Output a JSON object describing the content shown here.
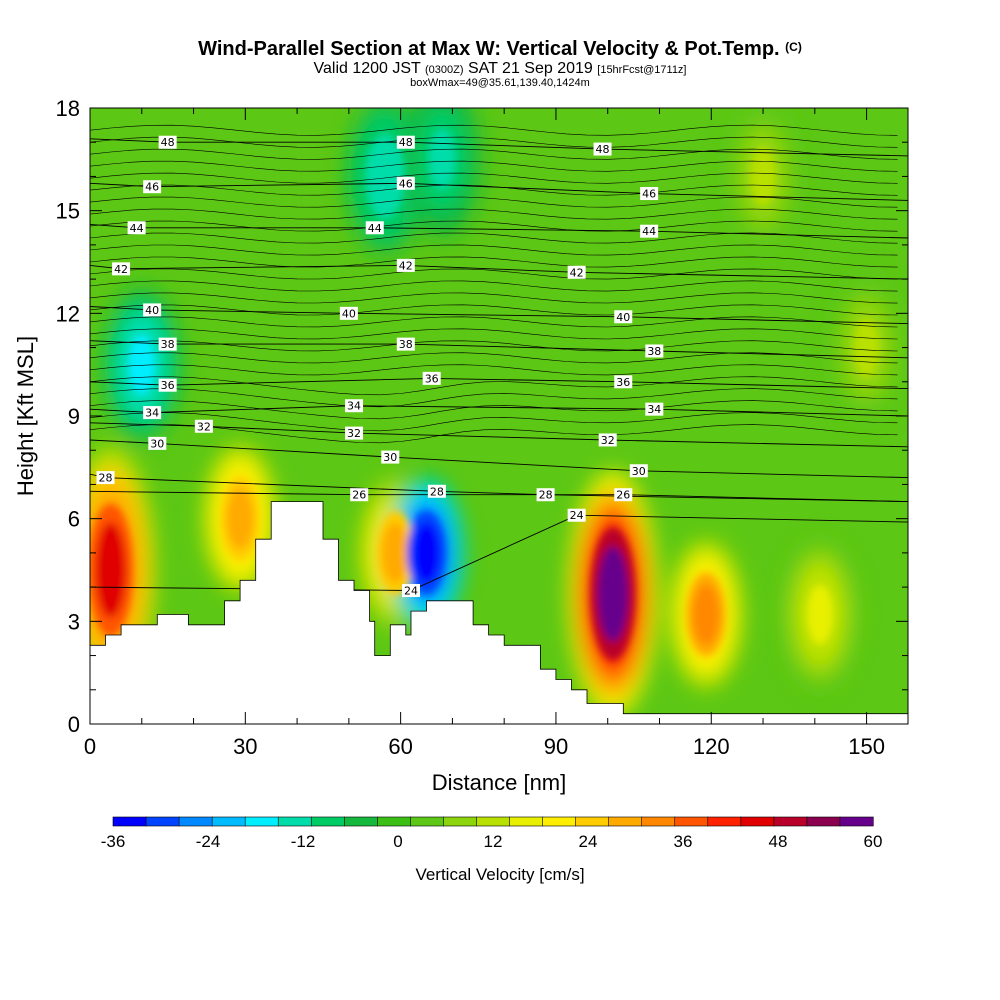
{
  "title": {
    "main": "Wind-Parallel Section at Max W: Vertical Velocity & Pot.Temp.",
    "copyright": "(C)",
    "valid_prefix": "Valid 1200 JST",
    "valid_utc": "(0300Z)",
    "valid_date": "SAT 21 Sep 2019",
    "forecast": "[15hrFcst@1711z]",
    "box_info": "boxWmax=49@35.61,139.40,1424m"
  },
  "colors": {
    "terrain": "#ffffff",
    "background_green": "#5cc714",
    "colorbar": [
      "#0000ff",
      "#0044ff",
      "#0088ff",
      "#00bbff",
      "#00eeff",
      "#00ddaa",
      "#00cc66",
      "#14b83c",
      "#3cbf14",
      "#5cc714",
      "#8cd40c",
      "#b8e000",
      "#e8f000",
      "#ffee00",
      "#ffcc00",
      "#ffaa00",
      "#ff8800",
      "#ff5500",
      "#ff2200",
      "#e00000",
      "#b8002a",
      "#8c0050",
      "#66008c"
    ]
  },
  "chart_data": {
    "type": "heatmap",
    "xlabel": "Distance [nm]",
    "ylabel": "Height [Kft MSL]",
    "xlim": [
      0,
      158
    ],
    "ylim": [
      0,
      18
    ],
    "x_ticks": [
      0,
      30,
      60,
      90,
      120,
      150
    ],
    "y_ticks": [
      0,
      3,
      6,
      9,
      12,
      15,
      18
    ],
    "colorbar": {
      "label": "Vertical Velocity [cm/s]",
      "min": -36,
      "max": 60,
      "tick_values": [
        -36,
        -24,
        -12,
        0,
        12,
        24,
        36,
        48,
        60
      ]
    },
    "terrain": [
      [
        0,
        2.3
      ],
      [
        3,
        2.3
      ],
      [
        3,
        2.6
      ],
      [
        6,
        2.6
      ],
      [
        6,
        2.9
      ],
      [
        13,
        2.9
      ],
      [
        13,
        3.2
      ],
      [
        19,
        3.2
      ],
      [
        19,
        2.9
      ],
      [
        26,
        2.9
      ],
      [
        26,
        3.6
      ],
      [
        29,
        3.6
      ],
      [
        29,
        4.2
      ],
      [
        32,
        4.2
      ],
      [
        32,
        5.4
      ],
      [
        35,
        5.4
      ],
      [
        35,
        6.5
      ],
      [
        45,
        6.5
      ],
      [
        45,
        5.4
      ],
      [
        48,
        5.4
      ],
      [
        48,
        4.2
      ],
      [
        51,
        4.2
      ],
      [
        51,
        3.9
      ],
      [
        54,
        3.9
      ],
      [
        54,
        3.0
      ],
      [
        55,
        3.0
      ],
      [
        55,
        2.0
      ],
      [
        58,
        2.0
      ],
      [
        58,
        2.9
      ],
      [
        61,
        2.9
      ],
      [
        61,
        2.6
      ],
      [
        62,
        2.6
      ],
      [
        62,
        3.3
      ],
      [
        65,
        3.3
      ],
      [
        65,
        3.6
      ],
      [
        74,
        3.6
      ],
      [
        74,
        2.9
      ],
      [
        77,
        2.9
      ],
      [
        77,
        2.6
      ],
      [
        80,
        2.6
      ],
      [
        80,
        2.3
      ],
      [
        87,
        2.3
      ],
      [
        87,
        1.6
      ],
      [
        90,
        1.6
      ],
      [
        90,
        1.3
      ],
      [
        93,
        1.3
      ],
      [
        93,
        1.0
      ],
      [
        96,
        1.0
      ],
      [
        96,
        0.6
      ],
      [
        103,
        0.6
      ],
      [
        103,
        0.3
      ],
      [
        158,
        0.3
      ]
    ],
    "velocity_features": [
      {
        "x": 4,
        "y": 4.5,
        "w": 45
      },
      {
        "x": 29,
        "y": 6.0,
        "w": 30
      },
      {
        "x": 59,
        "y": 5.0,
        "w": 28
      },
      {
        "x": 65,
        "y": 5.0,
        "w": -36
      },
      {
        "x": 101,
        "y": 3.8,
        "w": 60
      },
      {
        "x": 119,
        "y": 3.2,
        "w": 32
      },
      {
        "x": 141,
        "y": 3.2,
        "w": 15
      },
      {
        "x": 10,
        "y": 10.5,
        "w": -18
      },
      {
        "x": 57,
        "y": 16.0,
        "w": -15
      },
      {
        "x": 68,
        "y": 16.5,
        "w": -12
      },
      {
        "x": 130,
        "y": 16.0,
        "w": 10
      },
      {
        "x": 150,
        "y": 11.0,
        "w": 10
      }
    ],
    "theta_labels": [
      {
        "x": 15,
        "y": 17.0,
        "text": "48"
      },
      {
        "x": 61,
        "y": 17.0,
        "text": "48"
      },
      {
        "x": 99,
        "y": 16.8,
        "text": "48"
      },
      {
        "x": 12,
        "y": 15.7,
        "text": "46"
      },
      {
        "x": 61,
        "y": 15.8,
        "text": "46"
      },
      {
        "x": 108,
        "y": 15.5,
        "text": "46"
      },
      {
        "x": 9,
        "y": 14.5,
        "text": "44"
      },
      {
        "x": 55,
        "y": 14.5,
        "text": "44"
      },
      {
        "x": 108,
        "y": 14.4,
        "text": "44"
      },
      {
        "x": 6,
        "y": 13.3,
        "text": "42"
      },
      {
        "x": 61,
        "y": 13.4,
        "text": "42"
      },
      {
        "x": 94,
        "y": 13.2,
        "text": "42"
      },
      {
        "x": 12,
        "y": 12.1,
        "text": "40"
      },
      {
        "x": 50,
        "y": 12.0,
        "text": "40"
      },
      {
        "x": 103,
        "y": 11.9,
        "text": "40"
      },
      {
        "x": 15,
        "y": 11.1,
        "text": "38"
      },
      {
        "x": 61,
        "y": 11.1,
        "text": "38"
      },
      {
        "x": 109,
        "y": 10.9,
        "text": "38"
      },
      {
        "x": 15,
        "y": 9.9,
        "text": "36"
      },
      {
        "x": 66,
        "y": 10.1,
        "text": "36"
      },
      {
        "x": 103,
        "y": 10.0,
        "text": "36"
      },
      {
        "x": 12,
        "y": 9.1,
        "text": "34"
      },
      {
        "x": 51,
        "y": 9.3,
        "text": "34"
      },
      {
        "x": 109,
        "y": 9.2,
        "text": "34"
      },
      {
        "x": 22,
        "y": 8.7,
        "text": "32"
      },
      {
        "x": 51,
        "y": 8.5,
        "text": "32"
      },
      {
        "x": 100,
        "y": 8.3,
        "text": "32"
      },
      {
        "x": 13,
        "y": 8.2,
        "text": "30"
      },
      {
        "x": 58,
        "y": 7.8,
        "text": "30"
      },
      {
        "x": 106,
        "y": 7.4,
        "text": "30"
      },
      {
        "x": 3,
        "y": 7.2,
        "text": "28"
      },
      {
        "x": 52,
        "y": 6.7,
        "text": "26"
      },
      {
        "x": 67,
        "y": 6.8,
        "text": "28"
      },
      {
        "x": 88,
        "y": 6.7,
        "text": "28"
      },
      {
        "x": 103,
        "y": 6.7,
        "text": "26"
      },
      {
        "x": 94,
        "y": 6.1,
        "text": "24"
      },
      {
        "x": 62,
        "y": 3.9,
        "text": "24"
      }
    ]
  }
}
